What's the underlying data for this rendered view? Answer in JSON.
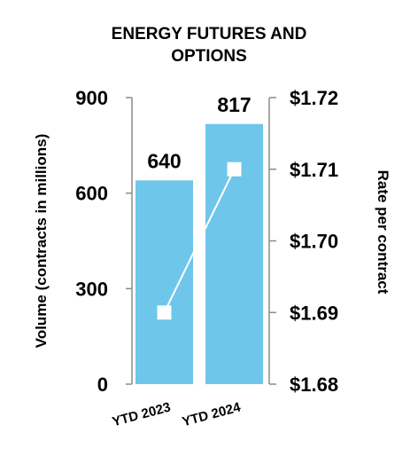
{
  "chart_data": {
    "type": "bar",
    "title_lines": [
      "ENERGY FUTURES AND",
      "OPTIONS"
    ],
    "categories": [
      "YTD 2023",
      "YTD 2024"
    ],
    "series": [
      {
        "name": "",
        "kind": "bar",
        "axis": "left",
        "values": [
          640,
          817
        ],
        "data_labels": [
          "640",
          "817"
        ],
        "color": "#6ec6ea"
      },
      {
        "name": "",
        "kind": "line",
        "axis": "right",
        "values": [
          1.69,
          1.71
        ],
        "color": "#ffffff"
      }
    ],
    "y_left": {
      "label": "Volume (contracts in millions)",
      "ylim": [
        0,
        900
      ],
      "ticks": [
        0,
        300,
        600,
        900
      ],
      "tick_labels": [
        "0",
        "300",
        "600",
        "900"
      ]
    },
    "y_right": {
      "label": "Rate per contract",
      "ylim": [
        1.68,
        1.72
      ],
      "ticks": [
        1.68,
        1.69,
        1.7,
        1.71,
        1.72
      ],
      "tick_labels": [
        "$1.68",
        "$1.69",
        "$1.70",
        "$1.71",
        "$1.72"
      ]
    },
    "grid": false,
    "legend": "none",
    "axis_color": "#8c8c8c"
  }
}
